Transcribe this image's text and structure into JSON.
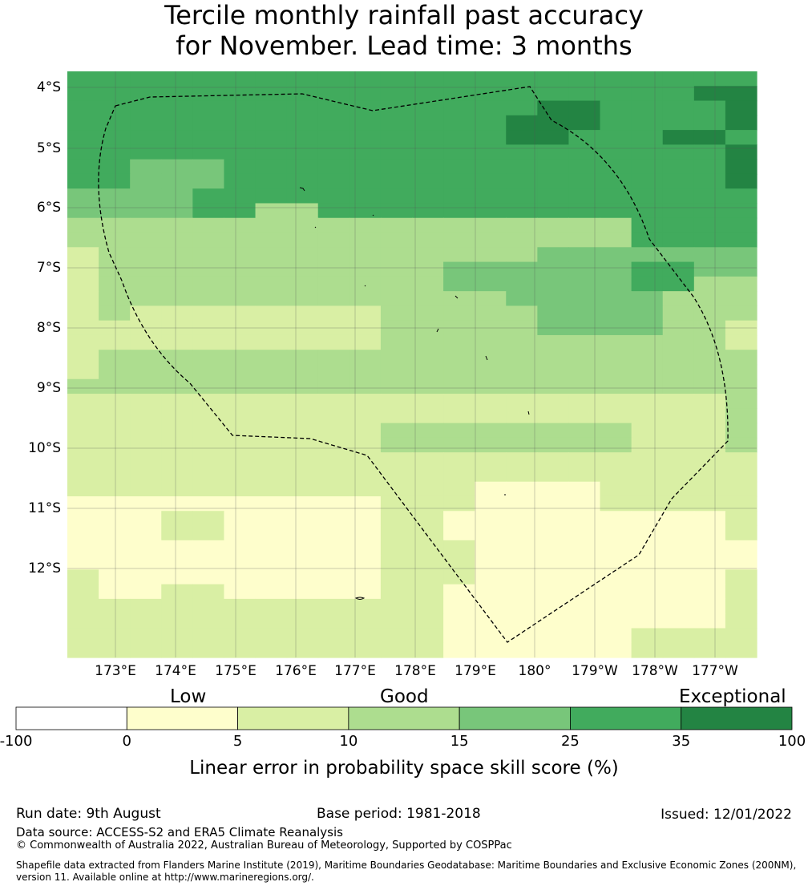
{
  "title": {
    "line1": "Tercile monthly rainfall past accuracy",
    "line2": "for November. Lead time: 3 months"
  },
  "map": {
    "lat_labels": [
      "4°S",
      "5°S",
      "6°S",
      "7°S",
      "8°S",
      "9°S",
      "10°S",
      "11°S",
      "12°S"
    ],
    "lon_labels": [
      "173°E",
      "174°E",
      "175°E",
      "176°E",
      "177°E",
      "178°E",
      "179°E",
      "180°",
      "179°W",
      "178°W",
      "177°W"
    ],
    "gridline_style": "dashed",
    "boundary": "dashed EEZ outline",
    "grid": [
      "5555555555555555555555",
      "5555555555555555555566",
      "5555555555555556655556",
      "5555555555555566655556",
      "5555555555555566555665",
      "5555555555555555555556",
      "5544455555555555555556",
      "5544455555555555555556",
      "4444555555555555555555",
      "4444553355555555555555",
      "3333333333333333335555",
      "3333333333333333335555",
      "2333333333333334444444",
      "2333333333334444445544",
      "2333333333334444445533",
      "2333333333333344444333",
      "2322222222333334444333",
      "2222222222333334444332",
      "2222222222333333333332",
      "2333333333333333333333",
      "2333333333333333333333",
      "3333333333333333333333",
      "2222222222222222222223",
      "2222222222222222222223",
      "2222222222333333332223",
      "2222222222333333332223",
      "2222222222222222222222",
      "2222222222222222222222",
      "2222222222222111122222",
      "1111111111222111122222",
      "1112211111221111111112",
      "1112211111221111111112",
      "1111111111222111111111",
      "1111111111222111111111",
      "2111111111222111111112",
      "2112211111221111111112",
      "2222222222221111111112",
      "2222222222221111111112",
      "2222222222221111112222",
      "2222222222221111112222"
    ]
  },
  "legend": {
    "categories": [
      {
        "label": "Low"
      },
      {
        "label": "Good"
      },
      {
        "label": "Exceptional"
      }
    ],
    "bins": [
      {
        "from": -100,
        "to": 0,
        "color": "#ffffff"
      },
      {
        "from": 0,
        "to": 5,
        "color": "#fefecc"
      },
      {
        "from": 5,
        "to": 10,
        "color": "#d9efa4"
      },
      {
        "from": 10,
        "to": 15,
        "color": "#addd8f"
      },
      {
        "from": 15,
        "to": 25,
        "color": "#78c67a"
      },
      {
        "from": 25,
        "to": 35,
        "color": "#41ab5d"
      },
      {
        "from": 35,
        "to": 100,
        "color": "#238443"
      }
    ],
    "ticks": [
      "-100",
      "0",
      "5",
      "10",
      "15",
      "25",
      "35",
      "100"
    ],
    "title": "Linear error in probability space skill score (%)"
  },
  "footer": {
    "run_date": "Run date: 9th August",
    "base_period": "Base period: 1981-2018",
    "issued": "Issued: 12/01/2022",
    "data_source": "Data source: ACCESS-S2 and ERA5 Climate Reanalysis",
    "copyright": "© Commonwealth of Australia 2022, Australian Bureau of Meteorology, Supported by COSPPac",
    "shapefile_line1": "Shapefile data extracted from Flanders Marine Institute (2019), Maritime Boundaries Geodatabase: Maritime Boundaries and Exclusive Economic Zones (200NM),",
    "shapefile_line2": "version 11. Available online at http://www.marineregions.org/."
  }
}
